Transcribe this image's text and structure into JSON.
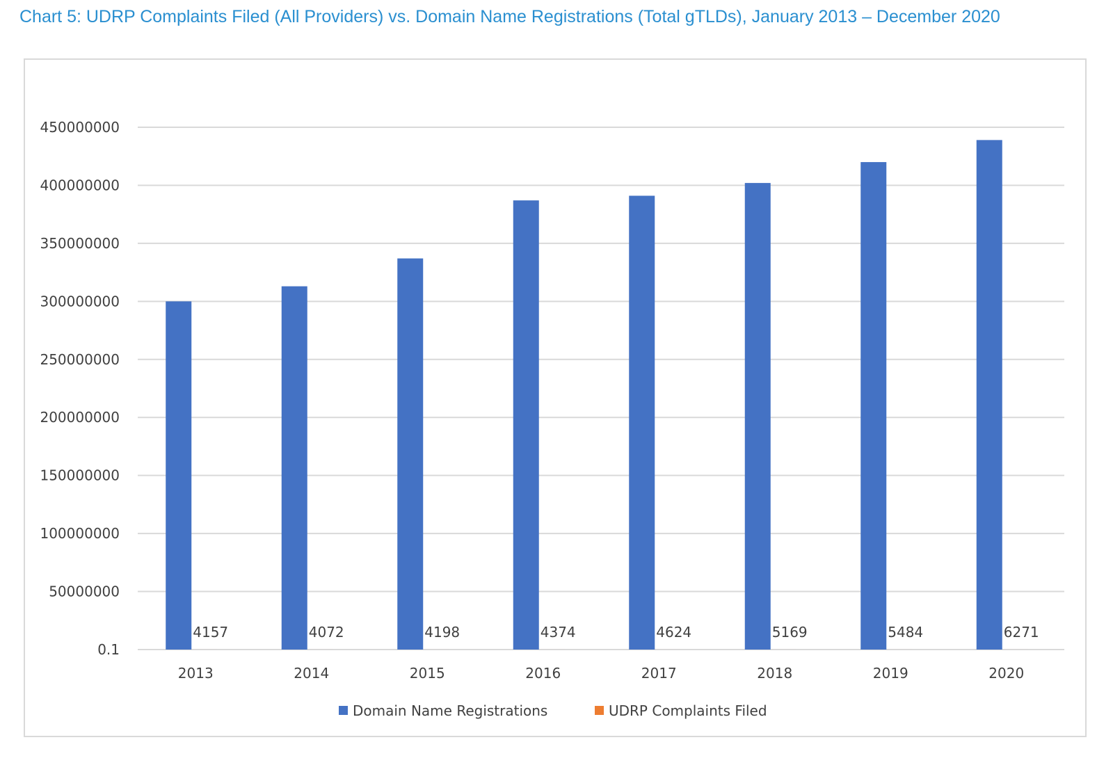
{
  "title": "Chart 5: UDRP Complaints Filed (All Providers) vs. Domain Name Registrations (Total gTLDs), January 2013 – December 2020",
  "chart_data": {
    "type": "bar",
    "categories": [
      "2013",
      "2014",
      "2015",
      "2016",
      "2017",
      "2018",
      "2019",
      "2020"
    ],
    "series": [
      {
        "name": "Domain Name Registrations",
        "color": "#4472c4",
        "values": [
          300000000,
          313000000,
          337000000,
          387000000,
          391000000,
          402000000,
          420000000,
          439000000
        ]
      },
      {
        "name": "UDRP Complaints Filed",
        "color": "#ed7d31",
        "values": [
          4157,
          4072,
          4198,
          4374,
          4624,
          5169,
          5484,
          6271
        ]
      }
    ],
    "data_labels": [
      "4157",
      "4072",
      "4198",
      "4374",
      "4624",
      "5169",
      "5484",
      "6271"
    ],
    "y_ticks": [
      "0.1",
      "50000000",
      "100000000",
      "150000000",
      "200000000",
      "250000000",
      "300000000",
      "350000000",
      "400000000",
      "450000000"
    ],
    "ylim": [
      0,
      450000000
    ],
    "xlabel": "",
    "ylabel": "",
    "grid": true,
    "legend": "bottom"
  }
}
